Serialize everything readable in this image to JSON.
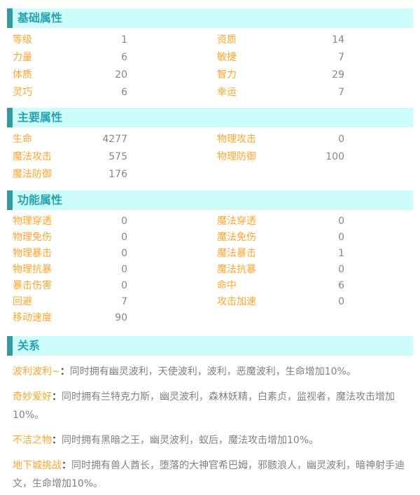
{
  "colors": {
    "header_bg": "#ccfdfa",
    "header_bar": "#38989f",
    "header_title": "#2aa2ae",
    "label_orange": "#ffa42d",
    "value_gray": "#80888d",
    "body_gray": "#808080",
    "colon_dark": "#4d4d4d"
  },
  "sections": [
    {
      "title": "基础属性",
      "pairs": [
        {
          "label": "等级",
          "value": "1"
        },
        {
          "label": "资质",
          "value": "14"
        },
        {
          "label": "力量",
          "value": "6"
        },
        {
          "label": "敏捷",
          "value": "7"
        },
        {
          "label": "体质",
          "value": "20"
        },
        {
          "label": "智力",
          "value": "29"
        },
        {
          "label": "灵巧",
          "value": "6"
        },
        {
          "label": "幸运",
          "value": "7"
        }
      ]
    },
    {
      "title": "主要属性",
      "pairs": [
        {
          "label": "生命",
          "value": "4277"
        },
        {
          "label": "物理攻击",
          "value": "0"
        },
        {
          "label": "魔法攻击",
          "value": "575"
        },
        {
          "label": "物理防御",
          "value": "100"
        },
        {
          "label": "魔法防御",
          "value": "176"
        }
      ]
    },
    {
      "title": "功能属性",
      "pairs": [
        {
          "label": "物理穿透",
          "value": "0"
        },
        {
          "label": "魔法穿透",
          "value": "0"
        },
        {
          "label": "物理免伤",
          "value": "0"
        },
        {
          "label": "魔法免伤",
          "value": "0"
        },
        {
          "label": "物理暴击",
          "value": "0"
        },
        {
          "label": "魔法暴击",
          "value": "1"
        },
        {
          "label": "物理抗暴",
          "value": "0"
        },
        {
          "label": "魔法抗暴",
          "value": "0"
        },
        {
          "label": "暴击伤害",
          "value": "0"
        },
        {
          "label": "命中",
          "value": "6"
        },
        {
          "label": "回避",
          "value": "7"
        },
        {
          "label": "攻击加速",
          "value": "0"
        },
        {
          "label": "移动速度",
          "value": "90"
        }
      ]
    }
  ],
  "relations": {
    "title": "关系",
    "colon": "：",
    "items": [
      {
        "name": "波利波利~",
        "desc": "同时拥有幽灵波利，天使波利，波利，恶魔波利，生命增加10%。"
      },
      {
        "name": "奇妙爱好",
        "desc": "同时拥有兰特克力斯，幽灵波利，森林妖精，白素贞，监视者，魔法攻击增加10%。"
      },
      {
        "name": "不洁之物",
        "desc": "同时拥有黑暗之王，幽灵波利，蚁后，魔法攻击增加10%。"
      },
      {
        "name": "地下城挑战",
        "desc": "同时拥有兽人酋长，堕落的大神官希巴姆，邪骸浪人，幽灵波利，暗神射手迪文，生命增加10%。"
      }
    ]
  }
}
